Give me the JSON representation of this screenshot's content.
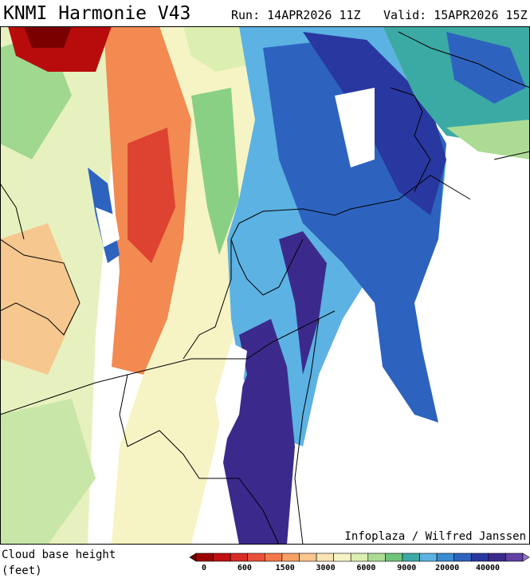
{
  "header": {
    "title": "KNMI Harmonie V43",
    "run": "Run: 14APR2026 11Z",
    "valid": "Valid: 15APR2026 15Z"
  },
  "credit": "Infoplaza / Wilfred Janssen",
  "legend": {
    "title": "Cloud base height",
    "unit": "(feet)",
    "ticks": [
      "0",
      "600",
      "1500",
      "3000",
      "6000",
      "9000",
      "20000",
      "40000"
    ],
    "colors": [
      "#6a0000",
      "#9c0000",
      "#c01010",
      "#d82c24",
      "#e8503a",
      "#f4784a",
      "#f8a064",
      "#fbc68e",
      "#fce3b4",
      "#f6f4c4",
      "#dcefb0",
      "#acdc94",
      "#70c47c",
      "#3caaa4",
      "#5cb2e2",
      "#3b8bd2",
      "#2d63bf",
      "#2838a0",
      "#3b2a8c",
      "#6240a4",
      "#9a78cc"
    ]
  }
}
